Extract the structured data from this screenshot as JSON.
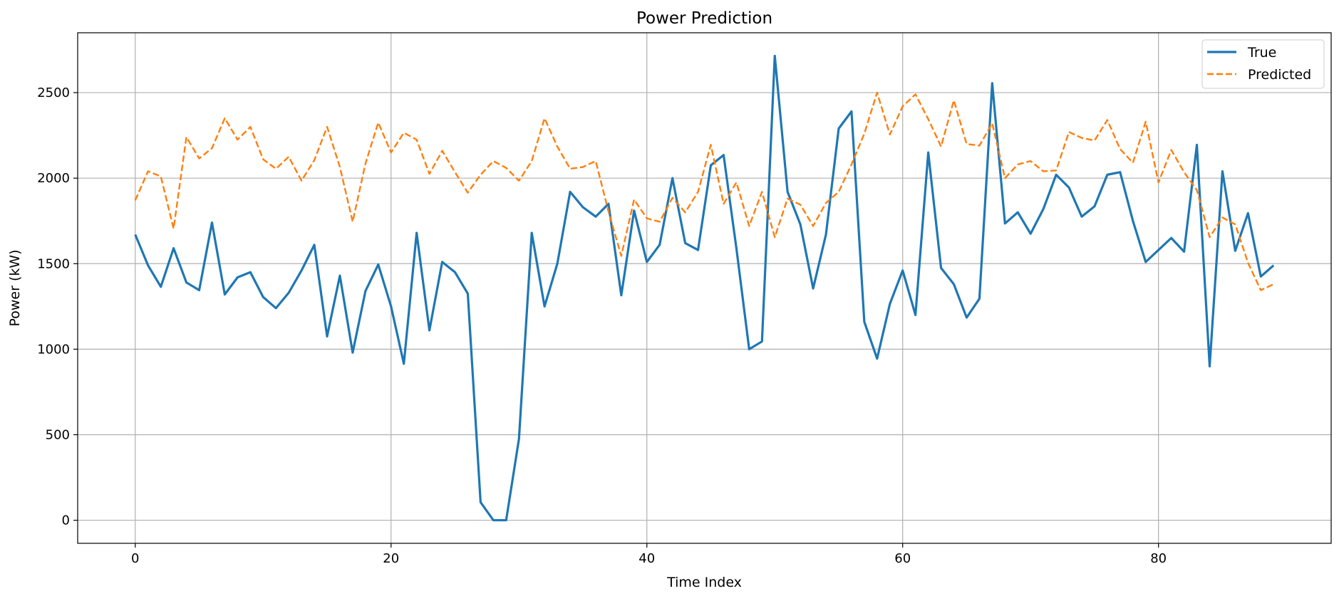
{
  "chart_data": {
    "type": "line",
    "title": "Power Prediction",
    "xlabel": "Time Index",
    "ylabel": "Power (kW)",
    "xlim": [
      -4.5,
      93.5
    ],
    "ylim": [
      -135,
      2850
    ],
    "xticks": [
      0,
      20,
      40,
      60,
      80
    ],
    "yticks": [
      0,
      500,
      1000,
      1500,
      2000,
      2500
    ],
    "grid": true,
    "legend": "top-right",
    "series": [
      {
        "name": "True",
        "color": "#1f77b4",
        "style": "solid",
        "values": [
          1670,
          1490,
          1365,
          1590,
          1390,
          1345,
          1740,
          1320,
          1420,
          1450,
          1305,
          1240,
          1330,
          1460,
          1610,
          1075,
          1430,
          980,
          1340,
          1495,
          1250,
          915,
          1680,
          1110,
          1510,
          1450,
          1325,
          105,
          0,
          0,
          475,
          1680,
          1250,
          1500,
          1920,
          1830,
          1775,
          1850,
          1315,
          1810,
          1510,
          1610,
          2000,
          1620,
          1580,
          2075,
          2135,
          1590,
          1000,
          1045,
          2715,
          1920,
          1730,
          1355,
          1670,
          2290,
          2390,
          1160,
          945,
          1265,
          1460,
          1200,
          2150,
          1475,
          1380,
          1185,
          1295,
          2555,
          1735,
          1800,
          1675,
          1820,
          2020,
          1945,
          1775,
          1835,
          2020,
          2035,
          1750,
          1510,
          1580,
          1650,
          1570,
          2195,
          900,
          2040,
          1575,
          1795,
          1425,
          1490
        ]
      },
      {
        "name": "Predicted",
        "color": "#ff7f0e",
        "style": "dashed",
        "values": [
          1870,
          2040,
          2010,
          1705,
          2240,
          2115,
          2175,
          2350,
          2225,
          2300,
          2110,
          2055,
          2125,
          1985,
          2105,
          2300,
          2065,
          1745,
          2085,
          2325,
          2150,
          2265,
          2225,
          2025,
          2160,
          2035,
          1915,
          2020,
          2100,
          2060,
          1985,
          2100,
          2350,
          2185,
          2055,
          2065,
          2100,
          1805,
          1545,
          1875,
          1765,
          1745,
          1885,
          1800,
          1920,
          2195,
          1850,
          1975,
          1720,
          1920,
          1655,
          1880,
          1845,
          1720,
          1855,
          1920,
          2080,
          2260,
          2500,
          2255,
          2420,
          2490,
          2345,
          2185,
          2455,
          2200,
          2190,
          2320,
          2000,
          2080,
          2100,
          2040,
          2045,
          2270,
          2235,
          2220,
          2340,
          2170,
          2090,
          2330,
          1975,
          2165,
          2035,
          1930,
          1655,
          1770,
          1730,
          1505,
          1345,
          1380
        ]
      }
    ]
  }
}
